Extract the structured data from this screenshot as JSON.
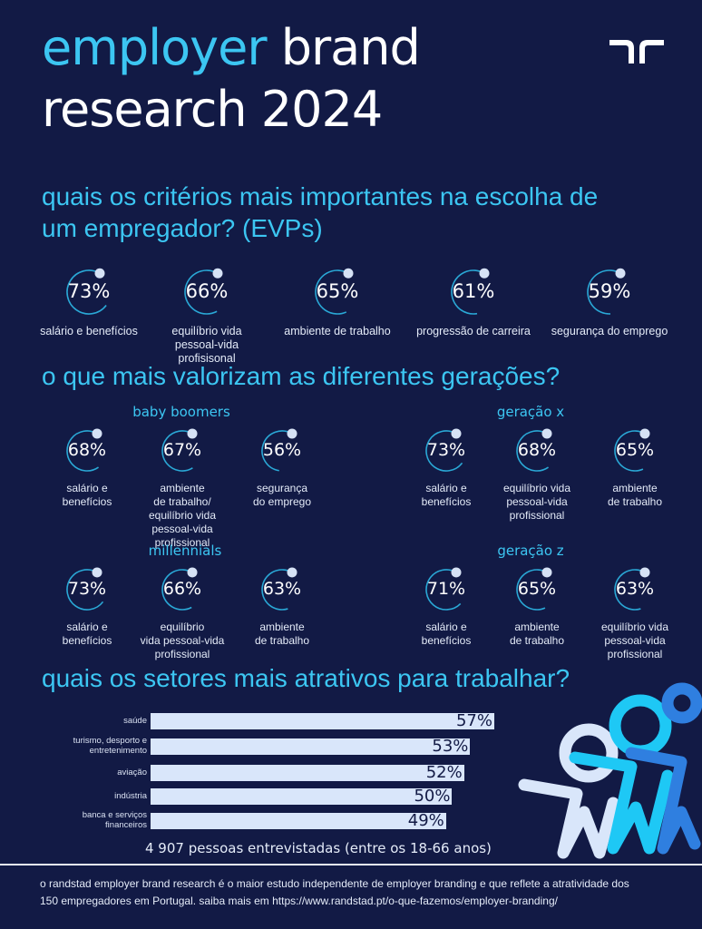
{
  "header": {
    "title_word1": "employer",
    "title_word2": "brand",
    "title_line2": "research 2024",
    "logo": "randstad-logo"
  },
  "section1": {
    "heading_line1": "quais os critérios mais importantes na escolha de",
    "heading_line2": "um empregador? (EVPs)",
    "items": [
      {
        "pct": 73,
        "label": "salário e benefícios"
      },
      {
        "pct": 66,
        "label": "equilíbrio vida\npessoal-vida profisisonal"
      },
      {
        "pct": 65,
        "label": "ambiente de trabalho"
      },
      {
        "pct": 61,
        "label": "progressão de carreira"
      },
      {
        "pct": 59,
        "label": "segurança do emprego"
      }
    ]
  },
  "section2": {
    "heading": "o que mais valorizam as diferentes gerações?",
    "groups": [
      {
        "name": "baby boomers",
        "items": [
          {
            "pct": 68,
            "label": "salário e\nbenefícios"
          },
          {
            "pct": 67,
            "label": "ambiente\nde trabalho/\nequilíbrio vida\npessoal-vida profissional"
          },
          {
            "pct": 56,
            "label": "segurança\ndo emprego"
          }
        ]
      },
      {
        "name": "geração x",
        "items": [
          {
            "pct": 73,
            "label": "salário e\nbenefícios"
          },
          {
            "pct": 68,
            "label": "equilíbrio vida\npessoal-vida\nprofissional"
          },
          {
            "pct": 65,
            "label": "ambiente\nde trabalho"
          }
        ]
      },
      {
        "name": "millennials",
        "items": [
          {
            "pct": 73,
            "label": "salário e\nbenefícios"
          },
          {
            "pct": 66,
            "label": "equilíbrio\nvida pessoal-vida\nprofissional"
          },
          {
            "pct": 63,
            "label": "ambiente\nde trabalho"
          }
        ]
      },
      {
        "name": "geração z",
        "items": [
          {
            "pct": 71,
            "label": "salário e\nbenefícios"
          },
          {
            "pct": 65,
            "label": "ambiente\nde trabalho"
          },
          {
            "pct": 63,
            "label": "equilíbrio vida\npessoal-vida\nprofissional"
          }
        ]
      }
    ]
  },
  "section3": {
    "heading": "quais os setores mais atrativos para trabalhar?",
    "caption": "4 907 pessoas entrevistadas (entre os 18-66 anos)"
  },
  "chart_data": {
    "type": "bar",
    "orientation": "horizontal",
    "title": "quais os setores mais atrativos para trabalhar?",
    "categories": [
      "saúde",
      "turismo, desporto e\nentretenimento",
      "aviação",
      "indústria",
      "banca e serviços\nfinanceiros"
    ],
    "values": [
      57,
      53,
      52,
      50,
      49
    ],
    "value_labels": [
      "57%",
      "53%",
      "52%",
      "50%",
      "49%"
    ],
    "unit": "%",
    "xlim": [
      0,
      57
    ],
    "grid": false
  },
  "footer": {
    "text_line1": "o randstad employer brand research é o maior estudo independente de employer branding e que reflete a atratividade dos",
    "text_line2": "150 empregadores em Portugal. saiba mais em  https://www.randstad.pt/o-que-fazemos/employer-branding/"
  },
  "colors": {
    "background": "#121a45",
    "accent": "#3cc6f2",
    "ring": "#2aa8d6",
    "dot": "#d6e2f5",
    "bar": "#d9e6fa",
    "figure1": "#d9e6fa",
    "figure2": "#1ec8f5",
    "figure3": "#2f7fe0"
  }
}
